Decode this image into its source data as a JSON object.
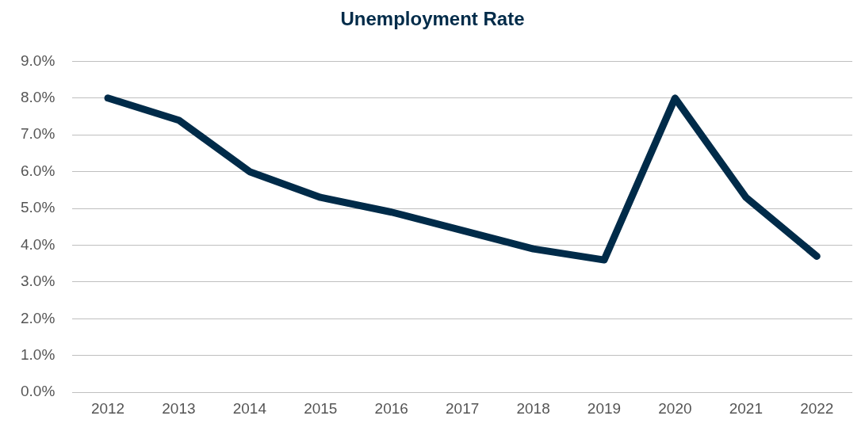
{
  "chart_data": {
    "type": "line",
    "title": "Unemployment Rate",
    "categories": [
      "2012",
      "2013",
      "2014",
      "2015",
      "2016",
      "2017",
      "2018",
      "2019",
      "2020",
      "2021",
      "2022"
    ],
    "series": [
      {
        "color": "#002b49",
        "values": [
          8.0,
          7.4,
          6.0,
          5.3,
          4.9,
          4.4,
          3.9,
          3.6,
          8.0,
          5.3,
          3.7
        ]
      }
    ],
    "ylim": [
      0,
      9
    ],
    "yticks": [
      {
        "value": 0,
        "label": "0.0%"
      },
      {
        "value": 1,
        "label": "1.0%"
      },
      {
        "value": 2,
        "label": "2.0%"
      },
      {
        "value": 3,
        "label": "3.0%"
      },
      {
        "value": 4,
        "label": "4.0%"
      },
      {
        "value": 5,
        "label": "5.0%"
      },
      {
        "value": 6,
        "label": "6.0%"
      },
      {
        "value": 7,
        "label": "7.0%"
      },
      {
        "value": 8,
        "label": "8.0%"
      },
      {
        "value": 9,
        "label": "9.0%"
      }
    ],
    "grid": "y",
    "marker": "none",
    "line_style": "solid",
    "legend": false
  }
}
